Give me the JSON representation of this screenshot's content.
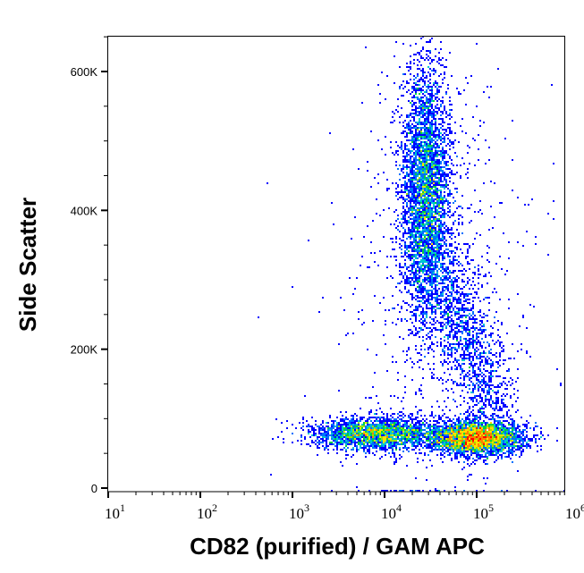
{
  "chart_data": {
    "type": "scatter",
    "subtype": "flow-cytometry-density-dot-plot",
    "xlabel": "CD82 (purified) / GAM APC",
    "ylabel": "Side Scatter",
    "x_scale": "log",
    "xlim": [
      10,
      1000000
    ],
    "ylim": [
      0,
      652000
    ],
    "x_ticks": [
      {
        "base": "10",
        "exp": "1",
        "value": 10
      },
      {
        "base": "10",
        "exp": "2",
        "value": 100
      },
      {
        "base": "10",
        "exp": "3",
        "value": 1000
      },
      {
        "base": "10",
        "exp": "4",
        "value": 10000
      },
      {
        "base": "10",
        "exp": "5",
        "value": 100000
      },
      {
        "base": "10",
        "exp": "6",
        "value": 1000000
      }
    ],
    "y_ticks": [
      {
        "label": "0",
        "value": 0
      },
      {
        "label": "200K",
        "value": 200000
      },
      {
        "label": "400K",
        "value": 400000
      },
      {
        "label": "600K",
        "value": 600000
      }
    ],
    "grid": false,
    "legend": "none",
    "density_colors": [
      "#0000ff",
      "#0070ff",
      "#00c8d0",
      "#00d040",
      "#a0e000",
      "#ffe000",
      "#ff8000",
      "#ff0000"
    ],
    "populations": [
      {
        "description": "low-SSC CD82-dim events",
        "x_center": 8000,
        "x_spread_decades": 0.35,
        "y_center": 78000,
        "y_spread": 12000,
        "events": 2500
      },
      {
        "description": "low-SSC CD82-bright events",
        "x_center": 100000,
        "x_spread_decades": 0.25,
        "y_center": 72000,
        "y_spread": 12000,
        "events": 3500
      },
      {
        "description": "high-SSC events",
        "x_center": 28000,
        "x_spread_decades": 0.13,
        "y_center": 430000,
        "y_spread": 90000,
        "events": 4000
      },
      {
        "description": "intermediate events",
        "x_from": 32000,
        "x_to": 160000,
        "y_from": 330000,
        "y_to": 110000,
        "x_spread_decades": 0.15,
        "events": 1500
      },
      {
        "description": "scattered events",
        "x_center": 40000,
        "x_spread_decades": 0.5,
        "y_center": 300000,
        "y_spread": 180000,
        "events": 800
      },
      {
        "description": "SSC-saturated events",
        "x_min": 8000,
        "x_max": 1000000,
        "y_center": 651000,
        "events": 400
      }
    ]
  }
}
